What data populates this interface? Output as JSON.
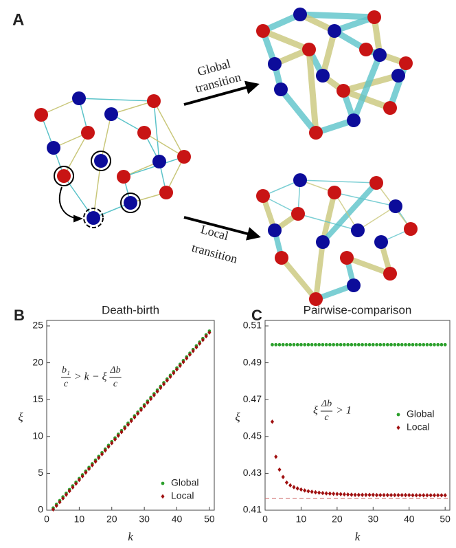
{
  "diagram": {
    "panel_label": "A",
    "global_transition": {
      "line1": "Global",
      "line2": "transition"
    },
    "local_transition": {
      "line1": "Local",
      "line2": "transition"
    }
  },
  "chart_data": [
    {
      "type": "scatter",
      "panel_label": "B",
      "title": "Death-birth",
      "xlabel": "k",
      "ylabel": "ξ",
      "xlim": [
        0,
        51.5
      ],
      "ylim": [
        0,
        25
      ],
      "xticks": [
        0,
        10,
        20,
        30,
        40,
        50
      ],
      "yticks": [
        0,
        5,
        10,
        15,
        20,
        25
      ],
      "legend": "lower right",
      "annotation": [
        {
          "num": "b₁",
          "den": "c"
        },
        {
          "text": "> k − ξ"
        },
        {
          "num": "Δb",
          "den": "c"
        }
      ],
      "x": [
        2,
        3,
        4,
        5,
        6,
        7,
        8,
        9,
        10,
        11,
        12,
        13,
        14,
        15,
        16,
        17,
        18,
        19,
        20,
        21,
        22,
        23,
        24,
        25,
        26,
        27,
        28,
        29,
        30,
        31,
        32,
        33,
        34,
        35,
        36,
        37,
        38,
        39,
        40,
        41,
        42,
        43,
        44,
        45,
        46,
        47,
        48,
        49,
        50
      ],
      "series": [
        {
          "name": "Global",
          "color": "#2ca02c",
          "marker": "circle",
          "values": [
            0.3,
            0.8,
            1.3,
            1.8,
            2.3,
            2.8,
            3.3,
            3.8,
            4.3,
            4.8,
            5.3,
            5.8,
            6.3,
            6.8,
            7.3,
            7.8,
            8.3,
            8.8,
            9.3,
            9.8,
            10.3,
            10.8,
            11.3,
            11.8,
            12.3,
            12.8,
            13.3,
            13.8,
            14.3,
            14.8,
            15.3,
            15.8,
            16.3,
            16.8,
            17.3,
            17.8,
            18.3,
            18.8,
            19.3,
            19.8,
            20.3,
            20.8,
            21.3,
            21.8,
            22.3,
            22.8,
            23.3,
            23.8,
            24.3
          ]
        },
        {
          "name": "Local",
          "color": "#a01010",
          "marker": "diamond",
          "values": [
            0.1,
            0.6,
            1.1,
            1.6,
            2.1,
            2.6,
            3.1,
            3.6,
            4.1,
            4.6,
            5.1,
            5.6,
            6.1,
            6.6,
            7.1,
            7.6,
            8.1,
            8.6,
            9.1,
            9.6,
            10.1,
            10.6,
            11.1,
            11.6,
            12.1,
            12.6,
            13.1,
            13.6,
            14.1,
            14.6,
            15.1,
            15.6,
            16.1,
            16.6,
            17.1,
            17.6,
            18.1,
            18.6,
            19.1,
            19.6,
            20.1,
            20.6,
            21.1,
            21.6,
            22.1,
            22.6,
            23.1,
            23.6,
            24.1
          ]
        }
      ]
    },
    {
      "type": "scatter",
      "panel_label": "C",
      "title": "Pairwise-comparison",
      "xlabel": "k",
      "ylabel": "ξ",
      "xlim": [
        0,
        51.3
      ],
      "ylim": [
        0.41,
        0.51
      ],
      "xticks": [
        0,
        10,
        20,
        30,
        40,
        50
      ],
      "yticks": [
        0.41,
        0.43,
        0.45,
        0.47,
        0.49,
        0.51
      ],
      "legend": "center right",
      "annotation": [
        {
          "text": "ξ"
        },
        {
          "num": "Δb",
          "den": "c"
        },
        {
          "text": "> 1"
        }
      ],
      "hline": {
        "value": 0.4165,
        "color": "#d07070",
        "style": "dashed"
      },
      "x": [
        2,
        3,
        4,
        5,
        6,
        7,
        8,
        9,
        10,
        11,
        12,
        13,
        14,
        15,
        16,
        17,
        18,
        19,
        20,
        21,
        22,
        23,
        24,
        25,
        26,
        27,
        28,
        29,
        30,
        31,
        32,
        33,
        34,
        35,
        36,
        37,
        38,
        39,
        40,
        41,
        42,
        43,
        44,
        45,
        46,
        47,
        48,
        49,
        50
      ],
      "series": [
        {
          "name": "Global",
          "color": "#2ca02c",
          "marker": "circle",
          "values": [
            0.4998,
            0.4998,
            0.4998,
            0.4998,
            0.4998,
            0.4998,
            0.4998,
            0.4998,
            0.4998,
            0.4998,
            0.4998,
            0.4998,
            0.4998,
            0.4998,
            0.4998,
            0.4998,
            0.4998,
            0.4998,
            0.4998,
            0.4998,
            0.4998,
            0.4998,
            0.4998,
            0.4998,
            0.4998,
            0.4998,
            0.4998,
            0.4998,
            0.4998,
            0.4998,
            0.4998,
            0.4998,
            0.4998,
            0.4998,
            0.4998,
            0.4998,
            0.4998,
            0.4998,
            0.4998,
            0.4998,
            0.4998,
            0.4998,
            0.4998,
            0.4998,
            0.4998,
            0.4998,
            0.4998,
            0.4998,
            0.4998
          ]
        },
        {
          "name": "Local",
          "color": "#a01010",
          "marker": "diamond",
          "values": [
            0.458,
            0.439,
            0.432,
            0.428,
            0.425,
            0.4235,
            0.4225,
            0.4218,
            0.4212,
            0.4207,
            0.4203,
            0.42,
            0.4197,
            0.4195,
            0.4193,
            0.4191,
            0.419,
            0.4189,
            0.4188,
            0.4187,
            0.4186,
            0.4185,
            0.4184,
            0.4183,
            0.4183,
            0.4183,
            0.4183,
            0.4183,
            0.4183,
            0.4182,
            0.4182,
            0.4182,
            0.4182,
            0.4182,
            0.4182,
            0.4182,
            0.4182,
            0.4182,
            0.4182,
            0.4181,
            0.4181,
            0.4181,
            0.4181,
            0.4181,
            0.4181,
            0.4181,
            0.4181,
            0.4181,
            0.4181
          ]
        }
      ]
    }
  ]
}
